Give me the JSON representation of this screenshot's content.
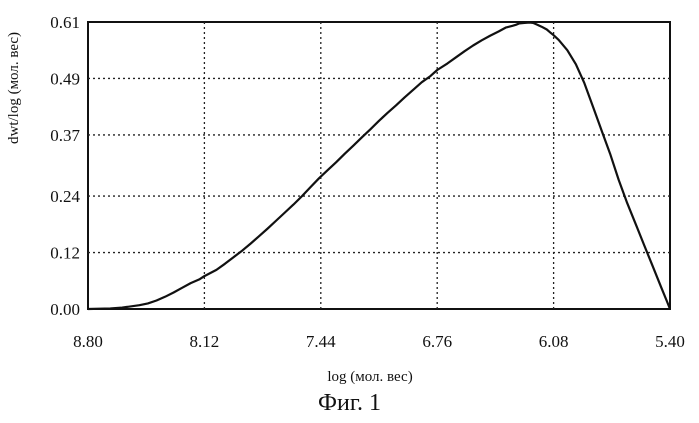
{
  "chart_data": {
    "type": "line",
    "xlabel": "log (мол. вес)",
    "ylabel": "dwt/log (мол. вес)",
    "x_ticks": [
      "8.80",
      "8.12",
      "7.44",
      "6.76",
      "6.08",
      "5.40"
    ],
    "y_ticks": [
      "0.00",
      "0.12",
      "0.24",
      "0.37",
      "0.49",
      "0.61"
    ],
    "xlim": [
      8.8,
      5.4
    ],
    "ylim": [
      0,
      0.61
    ],
    "x_reversed": true,
    "grid": true,
    "series": [
      {
        "x": [
          8.8,
          8.67,
          8.6,
          8.5,
          8.45,
          8.4,
          8.35,
          8.3,
          8.25,
          8.2,
          8.15,
          8.12,
          8.05,
          8.0,
          7.95,
          7.9,
          7.85,
          7.8,
          7.75,
          7.7,
          7.65,
          7.6,
          7.55,
          7.5,
          7.45,
          7.4,
          7.35,
          7.3,
          7.25,
          7.2,
          7.15,
          7.1,
          7.05,
          7.0,
          6.95,
          6.9,
          6.85,
          6.8,
          6.76,
          6.7,
          6.65,
          6.6,
          6.55,
          6.5,
          6.45,
          6.4,
          6.36,
          6.32,
          6.3,
          6.28,
          6.25,
          6.22,
          6.2,
          6.18,
          6.15,
          6.12,
          6.1,
          6.08,
          6.05,
          6.0,
          5.95,
          5.9,
          5.85,
          5.8,
          5.75,
          5.7,
          5.65,
          5.6,
          5.55,
          5.5,
          5.45,
          5.42,
          5.4
        ],
        "y": [
          0.0,
          0.001,
          0.003,
          0.008,
          0.012,
          0.018,
          0.026,
          0.035,
          0.045,
          0.055,
          0.063,
          0.07,
          0.083,
          0.096,
          0.11,
          0.124,
          0.139,
          0.155,
          0.171,
          0.188,
          0.205,
          0.222,
          0.24,
          0.259,
          0.278,
          0.295,
          0.312,
          0.33,
          0.347,
          0.365,
          0.382,
          0.4,
          0.417,
          0.433,
          0.45,
          0.466,
          0.482,
          0.495,
          0.508,
          0.522,
          0.535,
          0.548,
          0.56,
          0.571,
          0.581,
          0.59,
          0.598,
          0.602,
          0.604,
          0.607,
          0.608,
          0.609,
          0.608,
          0.605,
          0.6,
          0.594,
          0.588,
          0.582,
          0.572,
          0.55,
          0.52,
          0.48,
          0.43,
          0.38,
          0.33,
          0.275,
          0.225,
          0.18,
          0.135,
          0.09,
          0.045,
          0.018,
          0.0
        ]
      }
    ]
  },
  "figure": {
    "caption": "Фиг. 1"
  },
  "colors": {
    "line": "#111111",
    "grid": "#222222",
    "frame": "#111111",
    "background": "#ffffff"
  }
}
